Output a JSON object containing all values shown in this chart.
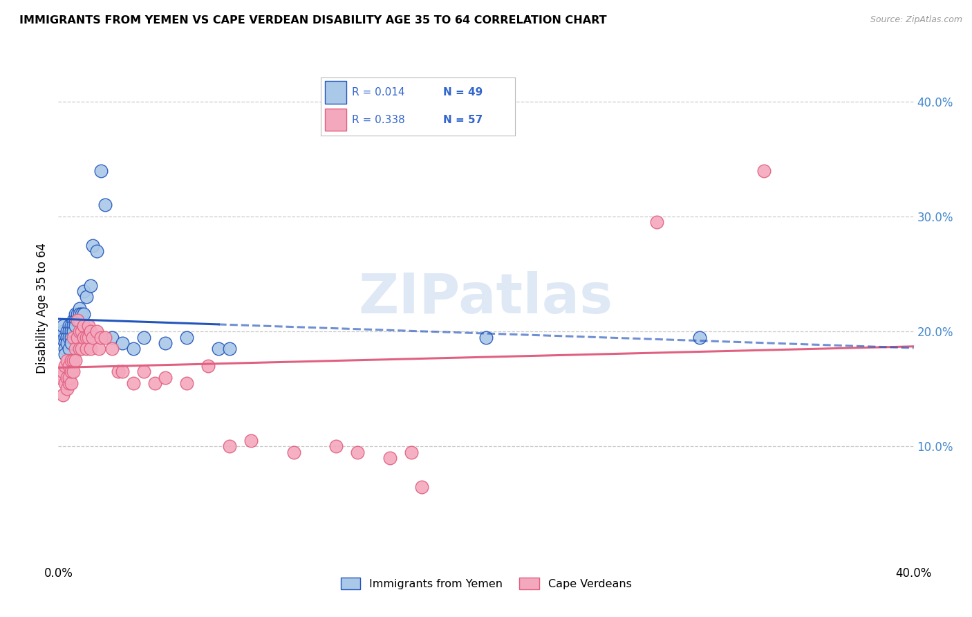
{
  "title": "IMMIGRANTS FROM YEMEN VS CAPE VERDEAN DISABILITY AGE 35 TO 64 CORRELATION CHART",
  "source": "Source: ZipAtlas.com",
  "ylabel": "Disability Age 35 to 64",
  "xlim": [
    0.0,
    0.4
  ],
  "ylim": [
    0.0,
    0.44
  ],
  "yticks_right": [
    0.1,
    0.2,
    0.3,
    0.4
  ],
  "ytick_labels_right": [
    "10.0%",
    "20.0%",
    "30.0%",
    "40.0%"
  ],
  "color_yemen": "#aac8e8",
  "color_cape": "#f4a8be",
  "color_yemen_line": "#2255bb",
  "color_cape_line": "#e06080",
  "color_r_text": "#3366cc",
  "watermark": "ZIPatlas",
  "legend_r1": "R = 0.014",
  "legend_n1": "N = 49",
  "legend_r2": "R = 0.338",
  "legend_n2": "N = 57",
  "yemen_x": [
    0.001,
    0.002,
    0.002,
    0.003,
    0.003,
    0.003,
    0.003,
    0.004,
    0.004,
    0.004,
    0.004,
    0.005,
    0.005,
    0.005,
    0.005,
    0.006,
    0.006,
    0.006,
    0.006,
    0.007,
    0.007,
    0.007,
    0.008,
    0.008,
    0.008,
    0.009,
    0.009,
    0.01,
    0.01,
    0.01,
    0.011,
    0.012,
    0.012,
    0.013,
    0.015,
    0.016,
    0.018,
    0.02,
    0.022,
    0.025,
    0.03,
    0.035,
    0.04,
    0.05,
    0.06,
    0.075,
    0.08,
    0.2,
    0.3
  ],
  "yemen_y": [
    0.195,
    0.2,
    0.205,
    0.195,
    0.19,
    0.185,
    0.18,
    0.2,
    0.195,
    0.195,
    0.19,
    0.205,
    0.2,
    0.195,
    0.185,
    0.205,
    0.2,
    0.195,
    0.19,
    0.21,
    0.205,
    0.2,
    0.215,
    0.21,
    0.205,
    0.215,
    0.21,
    0.22,
    0.215,
    0.21,
    0.215,
    0.235,
    0.215,
    0.23,
    0.24,
    0.275,
    0.27,
    0.34,
    0.31,
    0.195,
    0.19,
    0.185,
    0.195,
    0.19,
    0.195,
    0.185,
    0.185,
    0.195,
    0.195
  ],
  "cape_x": [
    0.001,
    0.002,
    0.002,
    0.003,
    0.003,
    0.004,
    0.004,
    0.004,
    0.005,
    0.005,
    0.005,
    0.006,
    0.006,
    0.006,
    0.007,
    0.007,
    0.007,
    0.008,
    0.008,
    0.009,
    0.009,
    0.01,
    0.01,
    0.011,
    0.011,
    0.012,
    0.012,
    0.013,
    0.013,
    0.014,
    0.014,
    0.015,
    0.015,
    0.016,
    0.018,
    0.019,
    0.02,
    0.022,
    0.025,
    0.028,
    0.03,
    0.035,
    0.04,
    0.045,
    0.05,
    0.06,
    0.07,
    0.08,
    0.09,
    0.11,
    0.13,
    0.14,
    0.155,
    0.165,
    0.17,
    0.28,
    0.33
  ],
  "cape_y": [
    0.16,
    0.145,
    0.165,
    0.155,
    0.17,
    0.16,
    0.15,
    0.175,
    0.155,
    0.17,
    0.16,
    0.175,
    0.155,
    0.165,
    0.195,
    0.175,
    0.165,
    0.185,
    0.175,
    0.21,
    0.195,
    0.2,
    0.185,
    0.2,
    0.185,
    0.205,
    0.195,
    0.195,
    0.185,
    0.205,
    0.195,
    0.2,
    0.185,
    0.195,
    0.2,
    0.185,
    0.195,
    0.195,
    0.185,
    0.165,
    0.165,
    0.155,
    0.165,
    0.155,
    0.16,
    0.155,
    0.17,
    0.1,
    0.105,
    0.095,
    0.1,
    0.095,
    0.09,
    0.095,
    0.065,
    0.295,
    0.34
  ]
}
